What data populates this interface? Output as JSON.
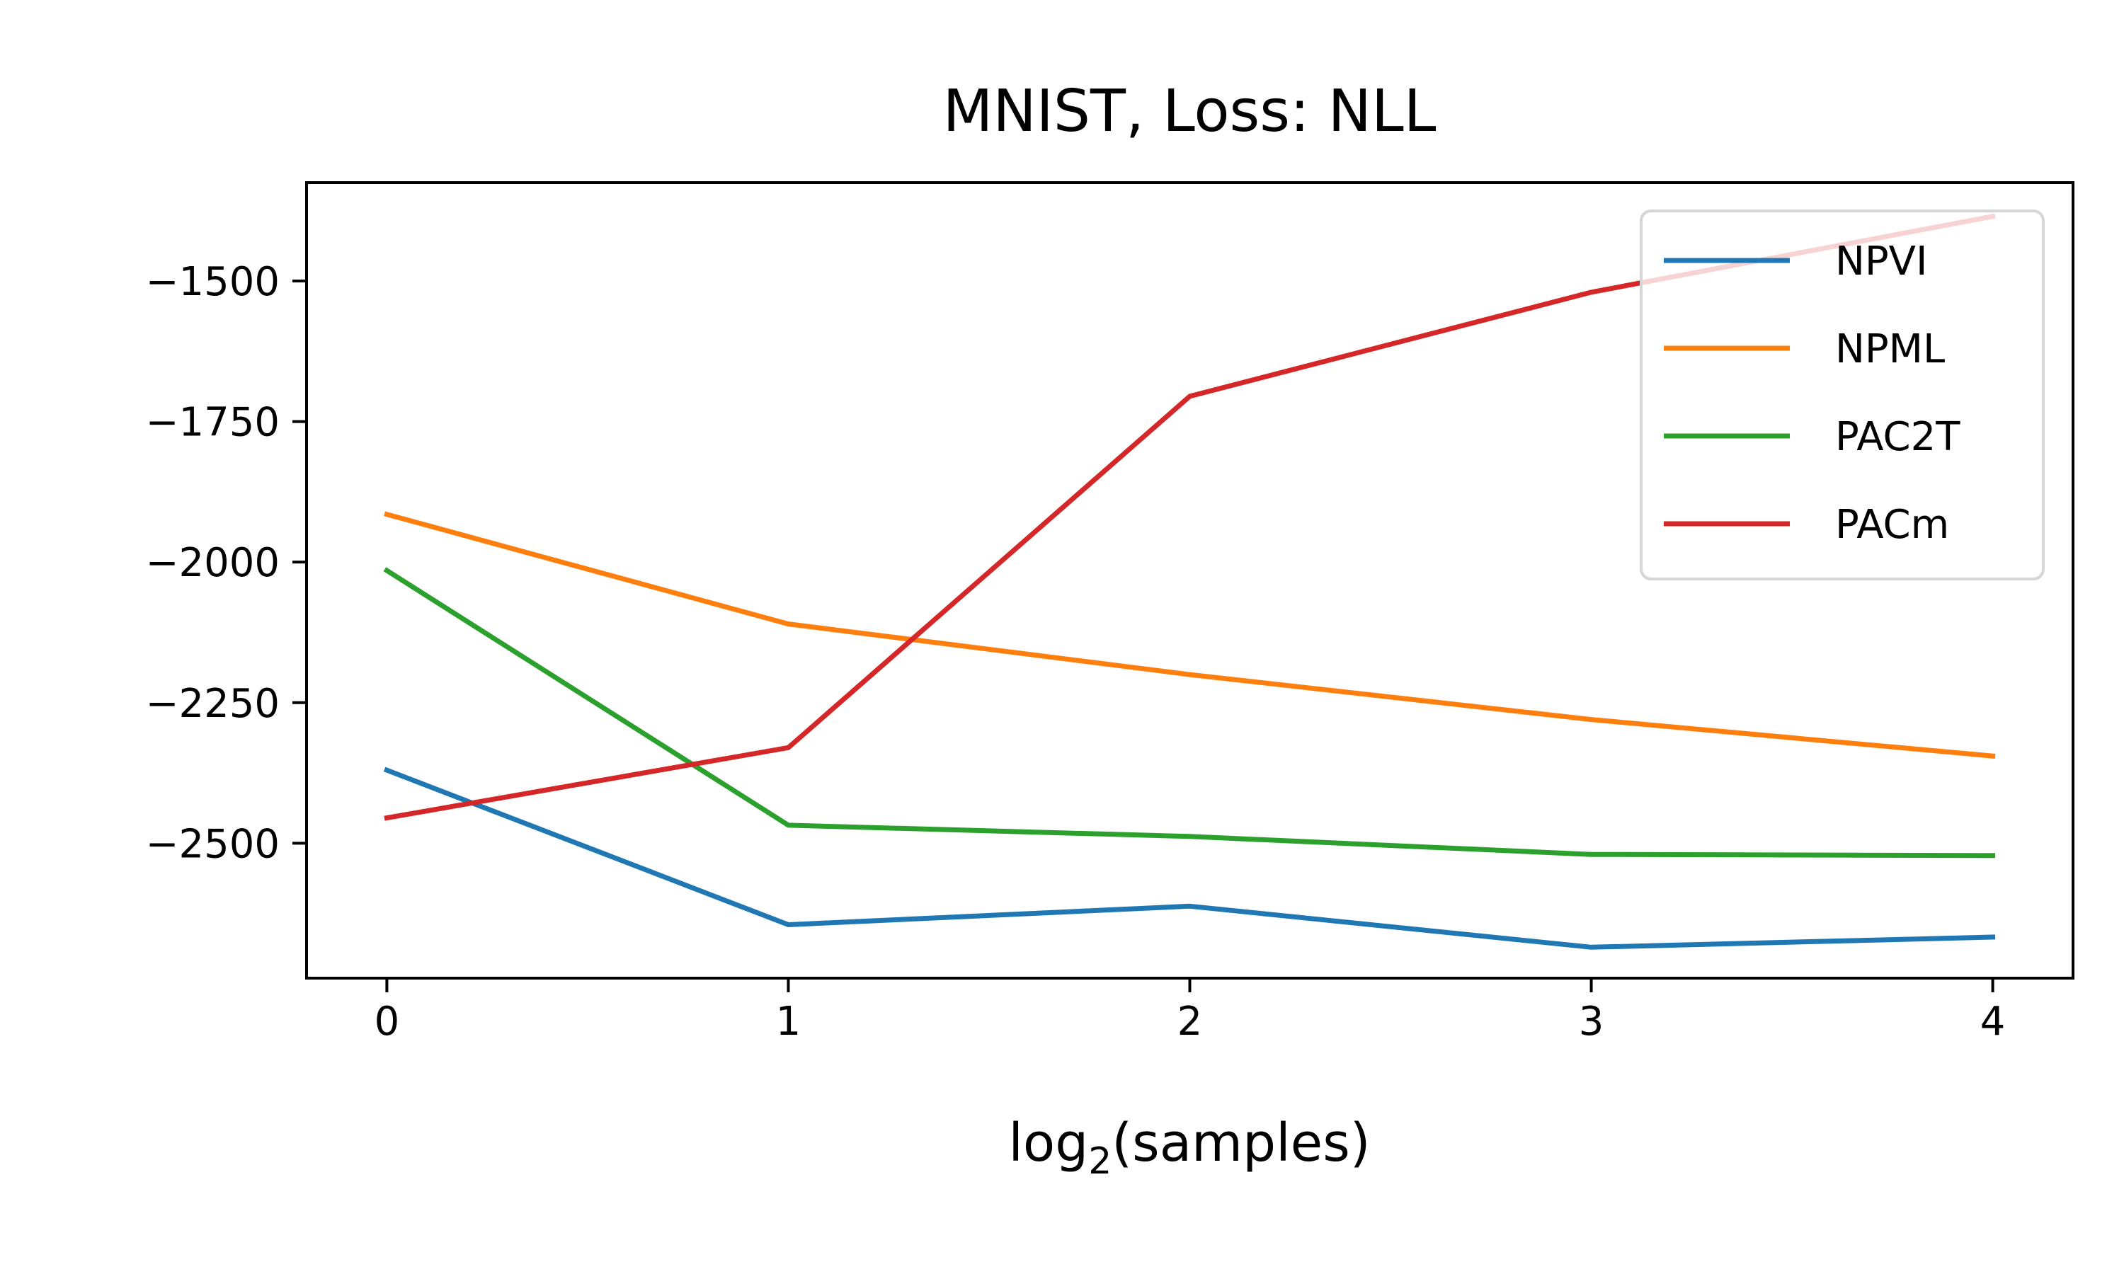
{
  "chart_data": {
    "type": "line",
    "title": "MNIST, Loss: NLL",
    "xlabel": {
      "prefix": "log",
      "subscript": "2",
      "suffix": "(samples)"
    },
    "ylabel": "",
    "x": [
      0,
      1,
      2,
      3,
      4
    ],
    "xticks": [
      "0",
      "1",
      "2",
      "3",
      "4"
    ],
    "xlim": [
      -0.2,
      4.2
    ],
    "yticks": [
      -2500,
      -2250,
      -2000,
      -1750,
      -1500
    ],
    "ytick_labels": [
      "−2500",
      "−2250",
      "−2000",
      "−1750",
      "−1500"
    ],
    "ylim": [
      -2740,
      -1325
    ],
    "grid": false,
    "legend_position": "top-right",
    "series": [
      {
        "name": "NPVI",
        "color": "#1f77b4",
        "values": [
          -2370,
          -2645,
          -2612,
          -2685,
          -2667
        ]
      },
      {
        "name": "NPML",
        "color": "#ff7f0e",
        "values": [
          -1915,
          -2110,
          -2200,
          -2280,
          -2345
        ]
      },
      {
        "name": "PAC2T",
        "color": "#2ca02c",
        "values": [
          -2015,
          -2468,
          -2488,
          -2520,
          -2522
        ]
      },
      {
        "name": "PACm",
        "color": "#d62728",
        "values": [
          -2455,
          -2330,
          -1705,
          -1520,
          -1385
        ]
      }
    ]
  }
}
